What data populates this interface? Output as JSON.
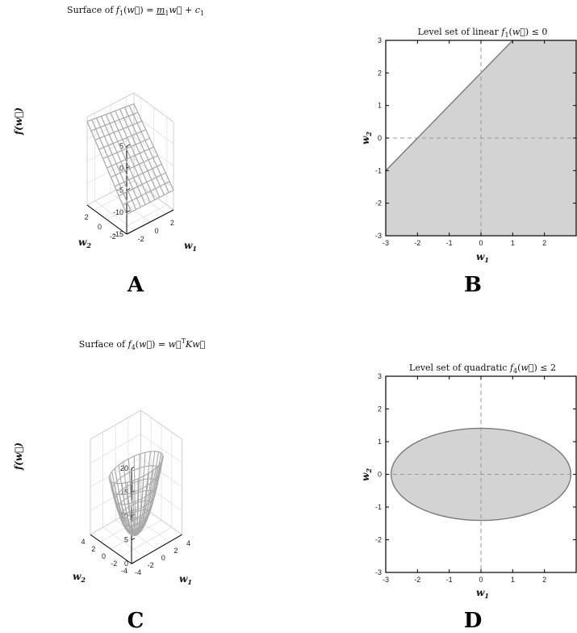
{
  "chart_data": [
    {
      "panel": "A",
      "type": "surface",
      "title": "Surface of f1(w) = m1 w + c1",
      "title_parts": {
        "pre": "Surface of ",
        "f": "f",
        "sub": "1",
        "mid": "(w⃗) = ",
        "m": "m",
        "msub": "1",
        "w": "w⃗",
        "plus": " + ",
        "c": "c",
        "csub": "1"
      },
      "xlabel": "w1",
      "ylabel": "w2",
      "zlabel": "f(w)",
      "xlim": [
        -3,
        3
      ],
      "ylim": [
        -3,
        3
      ],
      "zlim": [
        -15,
        5
      ],
      "xticks": [
        -2,
        0,
        2
      ],
      "yticks": [
        -2,
        0,
        2
      ],
      "zticks": [
        5,
        0,
        -5,
        -10,
        -15
      ],
      "grid_n": 10,
      "corners": {
        "w1_-3_w2_3": 4,
        "w1_3_w2_3": 2.5,
        "w1_-3_w2_-3": -10.5,
        "w1_3_w2_-3": -10.5
      }
    },
    {
      "panel": "B",
      "type": "area",
      "title": "Level set of linear f1(w) ≤ 0",
      "title_parts": {
        "pre": "Level set of linear ",
        "f": "f",
        "sub": "1",
        "post": "(w⃗) ≤ 0"
      },
      "xlabel": "w1",
      "ylabel": "w2",
      "xlim": [
        -3,
        3
      ],
      "ylim": [
        -3,
        3
      ],
      "xticks": [
        -3,
        -2,
        -1,
        0,
        1,
        2
      ],
      "yticks": [
        3,
        2,
        1,
        0,
        -1,
        -2,
        -3
      ],
      "boundary": {
        "x": [
          -3,
          1
        ],
        "y": [
          -1,
          3
        ]
      },
      "region": "below boundary line",
      "fill": "#d3d3d3"
    },
    {
      "panel": "C",
      "type": "surface",
      "title": "Surface of f4(w) = wT K w",
      "title_parts": {
        "pre": "Surface of ",
        "f": "f",
        "sub": "4",
        "mid": "(w⃗) = ",
        "w": "w⃗",
        "sup": "T",
        "K": "K",
        "w2": "w⃗"
      },
      "xlabel": "w1",
      "ylabel": "w2",
      "zlabel": "f(w)",
      "xlim": [
        -4,
        4
      ],
      "ylim": [
        -4,
        4
      ],
      "zlim": [
        0,
        20
      ],
      "xticks": [
        -4,
        -2,
        0,
        2,
        4
      ],
      "yticks": [
        -4,
        -2,
        0,
        2,
        4
      ],
      "zticks": [
        20,
        15,
        10,
        5,
        0
      ],
      "a": 1,
      "b": 4
    },
    {
      "panel": "D",
      "type": "area",
      "title": "Level set of quadratic f4(w) ≤ 2",
      "title_parts": {
        "pre": "Level set of quadratic ",
        "f": "f",
        "sub": "4",
        "post": "(w⃗) ≤ 2"
      },
      "xlabel": "w1",
      "ylabel": "w2",
      "xlim": [
        -3,
        3
      ],
      "ylim": [
        -3,
        3
      ],
      "xticks": [
        -3,
        -2,
        -1,
        0,
        1,
        2
      ],
      "yticks": [
        3,
        2,
        1,
        0,
        -1,
        -2,
        -3
      ],
      "ellipse": {
        "cx": 0,
        "cy": 0,
        "rx": 2.83,
        "ry": 1.41
      },
      "fill": "#d3d3d3"
    }
  ]
}
